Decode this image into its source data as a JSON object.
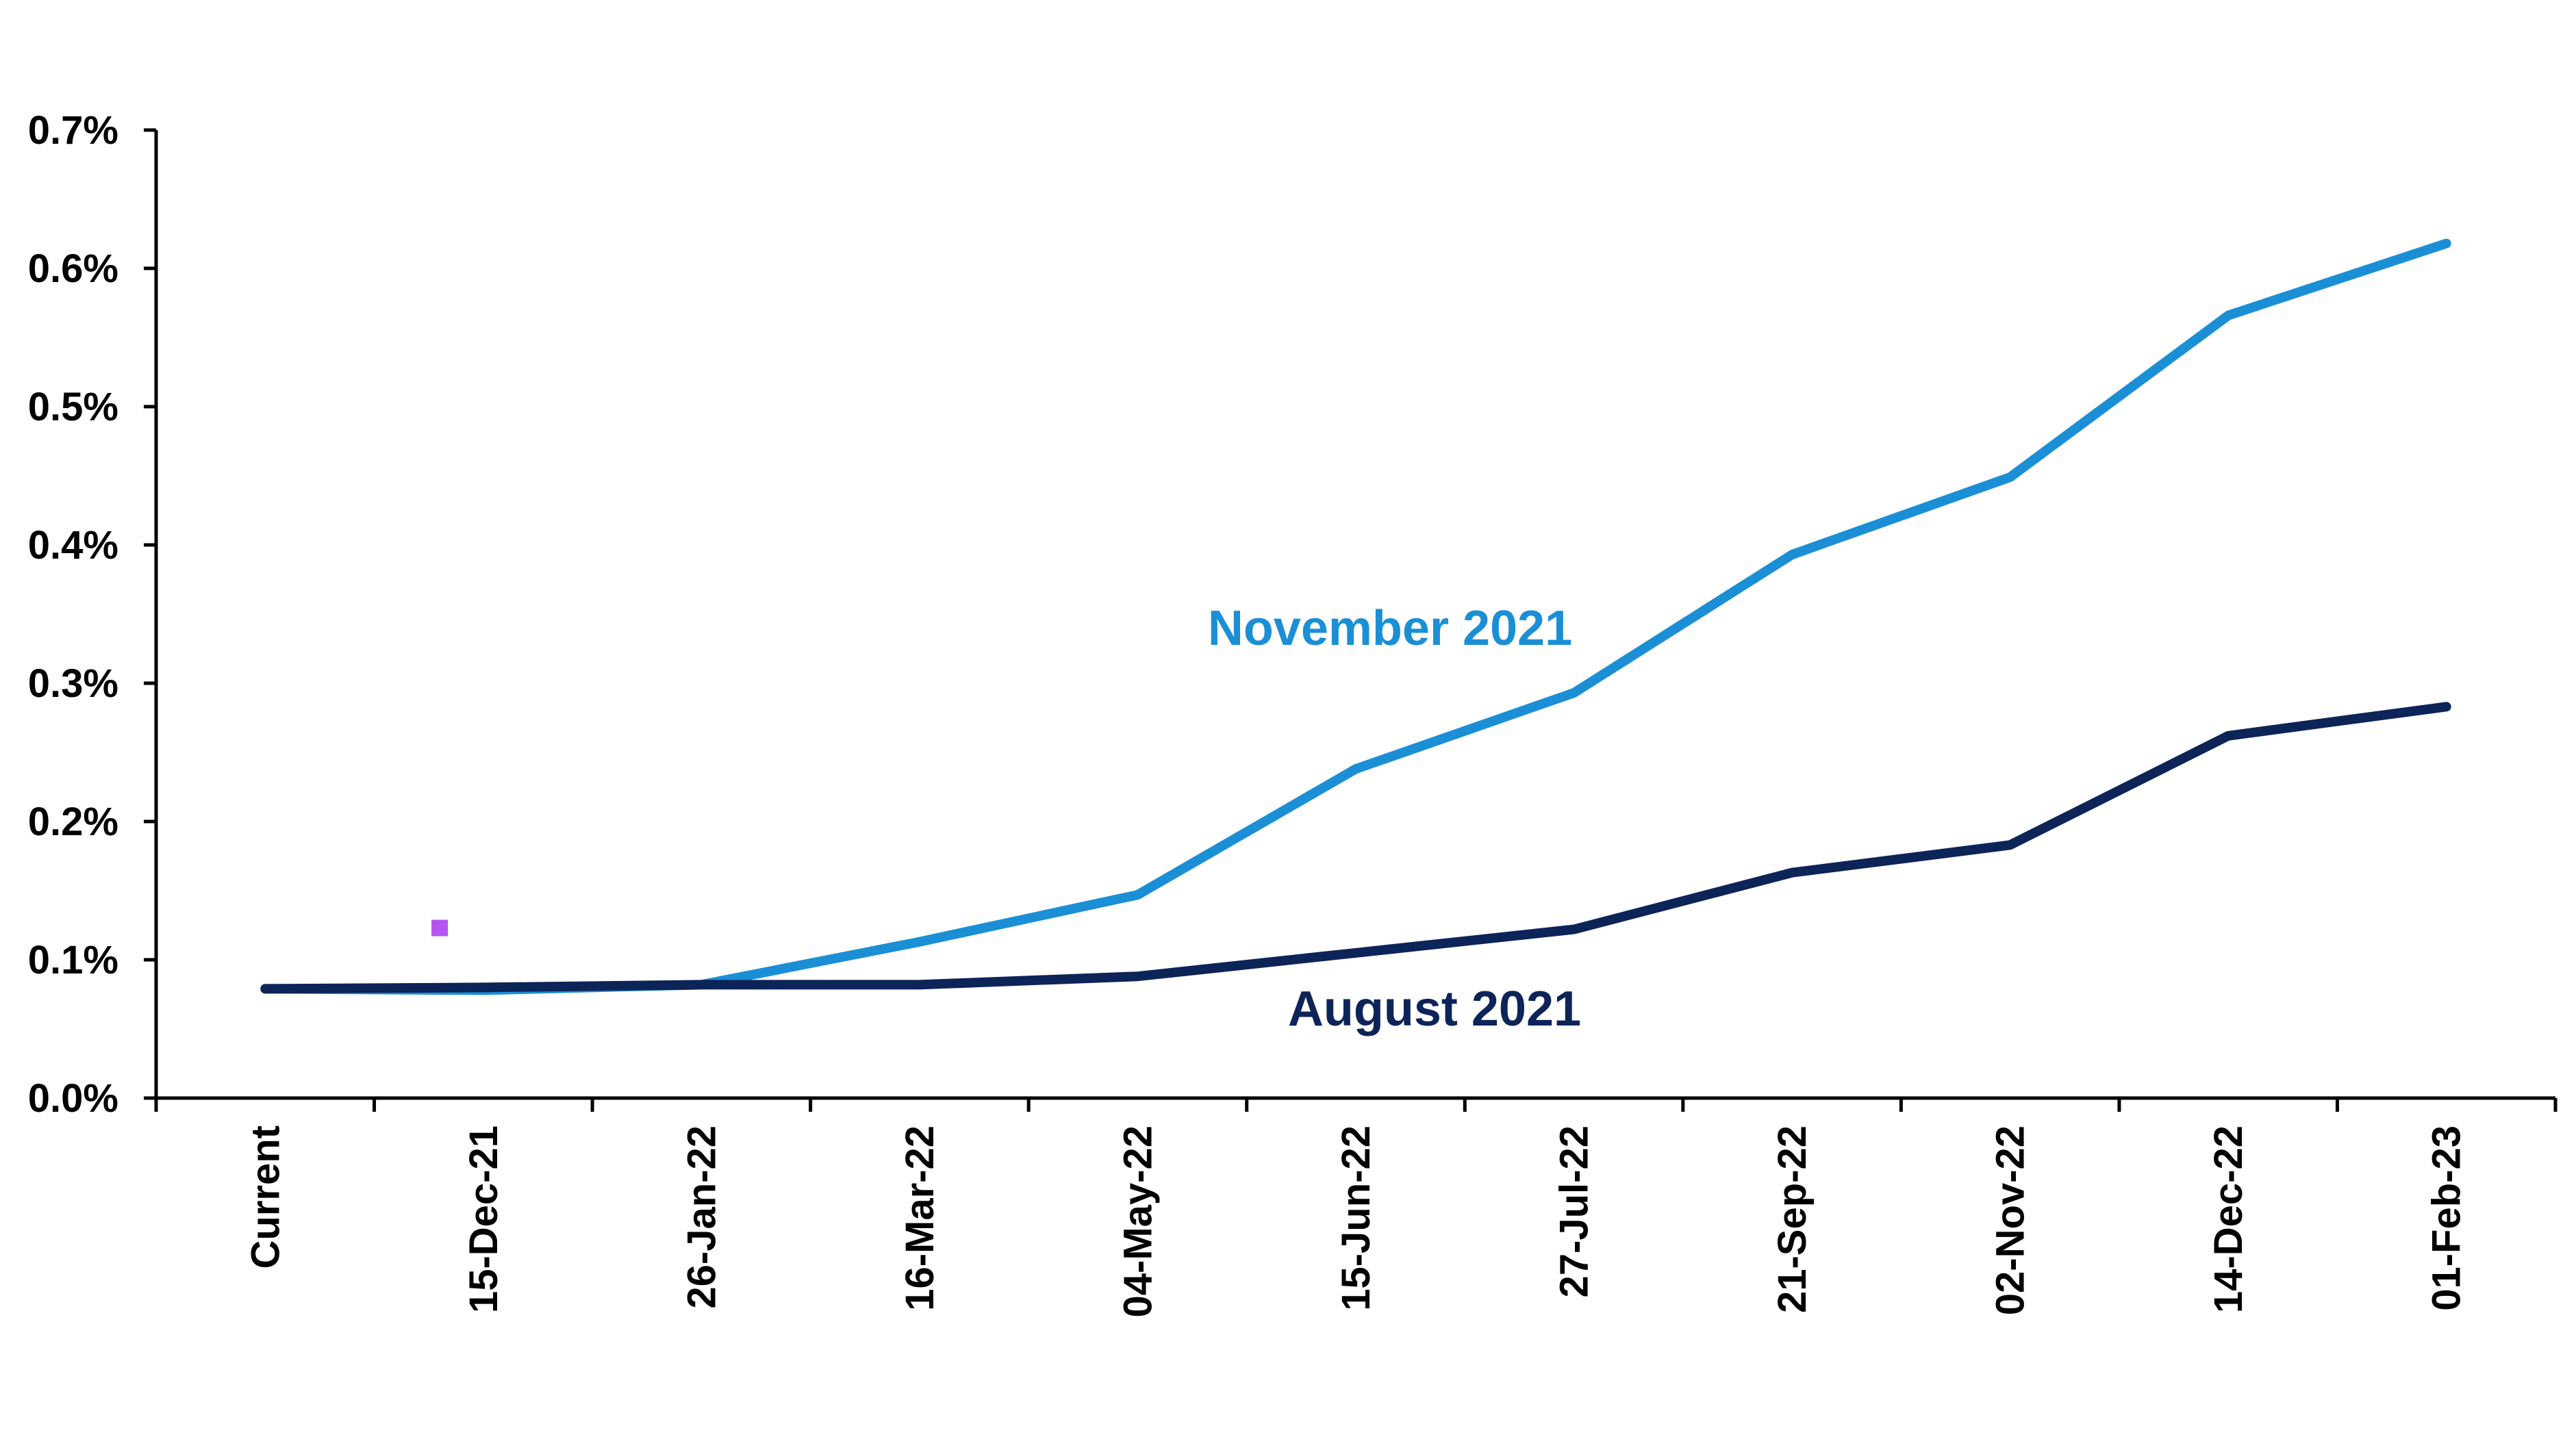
{
  "chart_data": {
    "type": "line",
    "categories": [
      "Current",
      "15-Dec-21",
      "26-Jan-22",
      "16-Mar-22",
      "04-May-22",
      "15-Jun-22",
      "27-Jul-22",
      "21-Sep-22",
      "02-Nov-22",
      "14-Dec-22",
      "01-Feb-23"
    ],
    "ylim": [
      0,
      0.7
    ],
    "yticks": [
      "0.0%",
      "0.1%",
      "0.2%",
      "0.3%",
      "0.4%",
      "0.5%",
      "0.6%",
      "0.7%"
    ],
    "ytick_values": [
      0,
      0.1,
      0.2,
      0.3,
      0.4,
      0.5,
      0.6,
      0.7
    ],
    "grid": false,
    "series": [
      {
        "name": "November 2021",
        "color": "#1b8fd6",
        "values": [
          0.079,
          0.078,
          0.082,
          0.113,
          0.147,
          0.238,
          0.293,
          0.393,
          0.449,
          0.566,
          0.618
        ]
      },
      {
        "name": "August 2021",
        "color": "#0d2458",
        "values": [
          0.079,
          0.08,
          0.082,
          0.082,
          0.088,
          0.105,
          0.122,
          0.163,
          0.183,
          0.262,
          0.283
        ]
      }
    ],
    "marker": {
      "color": "#b455f0",
      "x": 0.8,
      "y": 0.123
    }
  }
}
